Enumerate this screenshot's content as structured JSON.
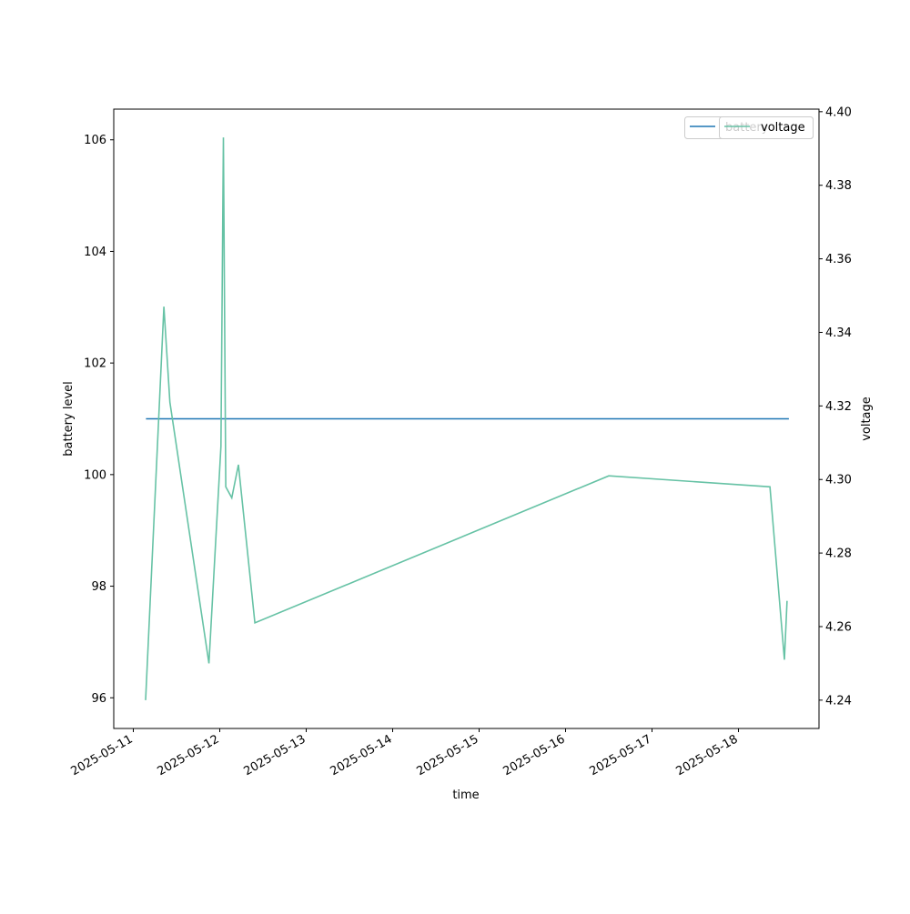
{
  "chart_data": {
    "type": "line",
    "xlabel": "time",
    "ylabel_left": "battery level",
    "ylabel_right": "voltage",
    "x_ticks": [
      "2025-05-11",
      "2025-05-12",
      "2025-05-13",
      "2025-05-14",
      "2025-05-15",
      "2025-05-16",
      "2025-05-17",
      "2025-05-18"
    ],
    "ylim_left": [
      95.45,
      106.55
    ],
    "ylim_right": [
      4.2323,
      4.4007
    ],
    "yticks_left": [
      "96",
      "98",
      "100",
      "102",
      "104",
      "106"
    ],
    "yticks_right": [
      "4.24",
      "4.26",
      "4.28",
      "4.30",
      "4.32",
      "4.34",
      "4.36",
      "4.38",
      "4.40"
    ],
    "legend_position": "upper right",
    "grid": false,
    "series": [
      {
        "name": "battery",
        "axis": "left",
        "color": "#1f77b4",
        "x": [
          "2025-05-11 03:30",
          "2025-05-18 14:00"
        ],
        "y": [
          101,
          101
        ]
      },
      {
        "name": "voltage",
        "axis": "right",
        "color": "#66c2a5",
        "x": [
          "2025-05-11 03:25",
          "2025-05-11 08:30",
          "2025-05-11 10:10",
          "2025-05-11 21:00",
          "2025-05-12 00:20",
          "2025-05-12 01:00",
          "2025-05-12 01:40",
          "2025-05-12 03:20",
          "2025-05-12 05:10",
          "2025-05-12 09:45",
          "2025-05-16 12:00",
          "2025-05-18 08:45",
          "2025-05-18 12:45",
          "2025-05-18 13:30"
        ],
        "y": [
          4.24,
          4.347,
          4.321,
          4.25,
          4.309,
          4.393,
          4.298,
          4.295,
          4.304,
          4.261,
          4.301,
          4.298,
          4.251,
          4.267
        ]
      }
    ]
  }
}
